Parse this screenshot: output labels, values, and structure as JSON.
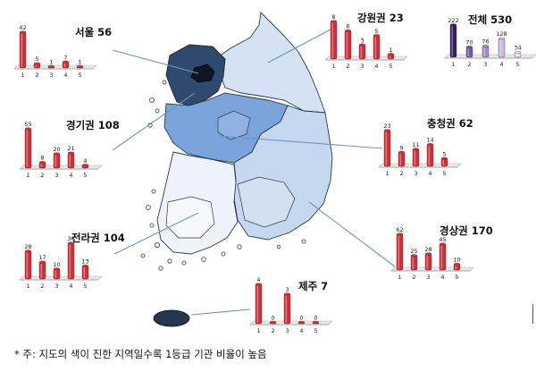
{
  "footnote": "* 주: 지도의 색이 진한 지역일수록 1등급 기관 비율이 높음",
  "colors": {
    "bar": "#c8323a",
    "bar_total": [
      "#2e1f5e",
      "#6a5aa6",
      "#9c8fcc",
      "#c4bce4",
      "#e4e0f2"
    ]
  },
  "chart_data": [
    {
      "type": "bar",
      "title": "서울 56",
      "categories": [
        "1",
        "2",
        "3",
        "4",
        "5"
      ],
      "values": [
        42,
        5,
        1,
        7,
        1
      ],
      "ylim": [
        0,
        42
      ]
    },
    {
      "type": "bar",
      "title": "강원권 23",
      "categories": [
        "1",
        "2",
        "3",
        "4",
        "5"
      ],
      "values": [
        8,
        6,
        3,
        5,
        1
      ],
      "ylim": [
        0,
        8
      ]
    },
    {
      "type": "bar",
      "title": "전체 530",
      "categories": [
        "1",
        "2",
        "3",
        "4",
        "5"
      ],
      "values": [
        222,
        70,
        76,
        128,
        34
      ],
      "ylim": [
        0,
        222
      ]
    },
    {
      "type": "bar",
      "title": "경기권 108",
      "categories": [
        "1",
        "2",
        "3",
        "4",
        "5"
      ],
      "values": [
        55,
        8,
        20,
        21,
        4
      ],
      "ylim": [
        0,
        55
      ]
    },
    {
      "type": "bar",
      "title": "충청권 62",
      "categories": [
        "1",
        "2",
        "3",
        "4",
        "5"
      ],
      "values": [
        23,
        9,
        11,
        14,
        5
      ],
      "ylim": [
        0,
        23
      ]
    },
    {
      "type": "bar",
      "title": "전라권 104",
      "categories": [
        "1",
        "2",
        "3",
        "4",
        "5"
      ],
      "values": [
        28,
        17,
        10,
        36,
        13
      ],
      "ylim": [
        0,
        36
      ]
    },
    {
      "type": "bar",
      "title": "경상권 170",
      "categories": [
        "1",
        "2",
        "3",
        "4",
        "5"
      ],
      "values": [
        62,
        25,
        28,
        45,
        10
      ],
      "ylim": [
        0,
        62
      ]
    },
    {
      "type": "bar",
      "title": "제주 7",
      "categories": [
        "1",
        "2",
        "3",
        "4",
        "5"
      ],
      "values": [
        4,
        0,
        3,
        0,
        0
      ],
      "ylim": [
        0,
        4
      ]
    }
  ]
}
